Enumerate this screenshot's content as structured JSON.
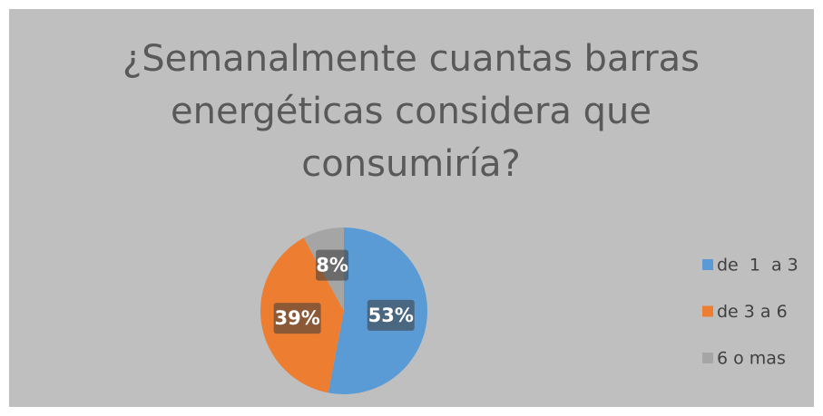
{
  "chart_data": {
    "type": "pie",
    "title": "¿Semanalmente cuantas barras energéticas considera que consumiría?",
    "categories": [
      "de  1  a 3",
      "de 3 a 6",
      "6 o mas"
    ],
    "values": [
      53,
      39,
      8
    ],
    "value_labels": [
      "53%",
      "39%",
      "8%"
    ],
    "colors": [
      "#5b9bd5",
      "#ed7d31",
      "#a5a5a5"
    ],
    "legend": "right"
  }
}
